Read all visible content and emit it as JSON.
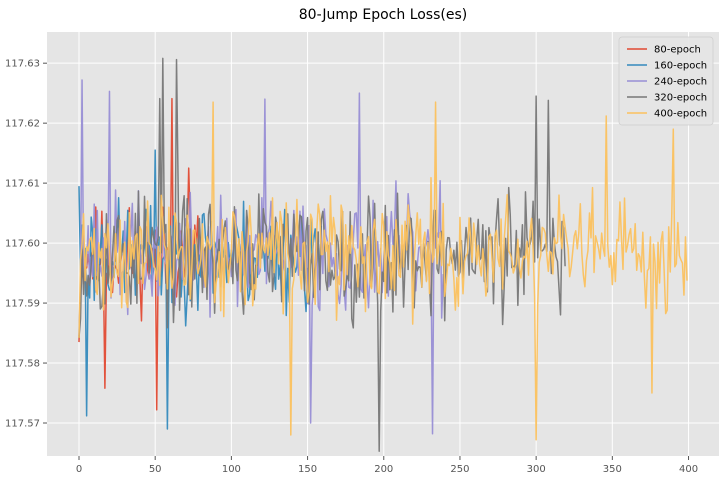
{
  "chart_data": {
    "type": "line",
    "title": "80-Jump Epoch Loss(es)",
    "xlabel": "",
    "ylabel": "",
    "xlim": [
      -21,
      420
    ],
    "ylim": [
      117.5645,
      117.6352
    ],
    "x_ticks": [
      0,
      50,
      100,
      150,
      200,
      250,
      300,
      350,
      400
    ],
    "x_tick_labels": [
      "0",
      "50",
      "100",
      "150",
      "200",
      "250",
      "300",
      "350",
      "400"
    ],
    "y_ticks": [
      117.57,
      117.58,
      117.59,
      117.6,
      117.61,
      117.62,
      117.63
    ],
    "y_tick_labels": [
      "117.57",
      "117.58",
      "117.59",
      "117.60",
      "117.61",
      "117.62",
      "117.63"
    ],
    "grid": true,
    "legend_position": "top-right",
    "center": 117.598,
    "series": [
      {
        "name": "80-epoch",
        "color": "#e24a33",
        "n": 80,
        "start": 117.5835,
        "amp": 0.0075,
        "seed": 11,
        "extremes": [
          [
            51,
            117.5722
          ],
          [
            61,
            117.6241
          ],
          [
            62,
            117.5915
          ],
          [
            72,
            117.6125
          ],
          [
            17,
            117.5758
          ]
        ]
      },
      {
        "name": "160-epoch",
        "color": "#348abd",
        "n": 160,
        "start": 117.6095,
        "amp": 0.0085,
        "seed": 23,
        "extremes": [
          [
            5,
            117.5712
          ],
          [
            58,
            117.569
          ],
          [
            50,
            117.6155
          ],
          [
            62,
            117.6045
          ]
        ]
      },
      {
        "name": "240-epoch",
        "color": "#988ed5",
        "n": 240,
        "start": 117.5845,
        "amp": 0.009,
        "seed": 37,
        "extremes": [
          [
            2,
            117.6272
          ],
          [
            20,
            117.6253
          ],
          [
            122,
            117.624
          ],
          [
            152,
            117.57
          ],
          [
            184,
            117.625
          ],
          [
            232,
            117.5682
          ]
        ]
      },
      {
        "name": "320-epoch",
        "color": "#777777",
        "n": 320,
        "start": 117.5842,
        "amp": 0.0095,
        "seed": 53,
        "extremes": [
          [
            55,
            117.6308
          ],
          [
            64,
            117.6306
          ],
          [
            53,
            117.6241
          ],
          [
            197,
            117.5653
          ],
          [
            300,
            117.6245
          ],
          [
            308,
            117.6238
          ]
        ]
      },
      {
        "name": "400-epoch",
        "color": "#fbc15e",
        "n": 400,
        "start": 117.5842,
        "amp": 0.0085,
        "seed": 71,
        "extremes": [
          [
            88,
            117.6235
          ],
          [
            139,
            117.568
          ],
          [
            234,
            117.6235
          ],
          [
            300,
            117.5672
          ],
          [
            346,
            117.6212
          ],
          [
            390,
            117.619
          ],
          [
            376,
            117.575
          ]
        ]
      }
    ]
  }
}
